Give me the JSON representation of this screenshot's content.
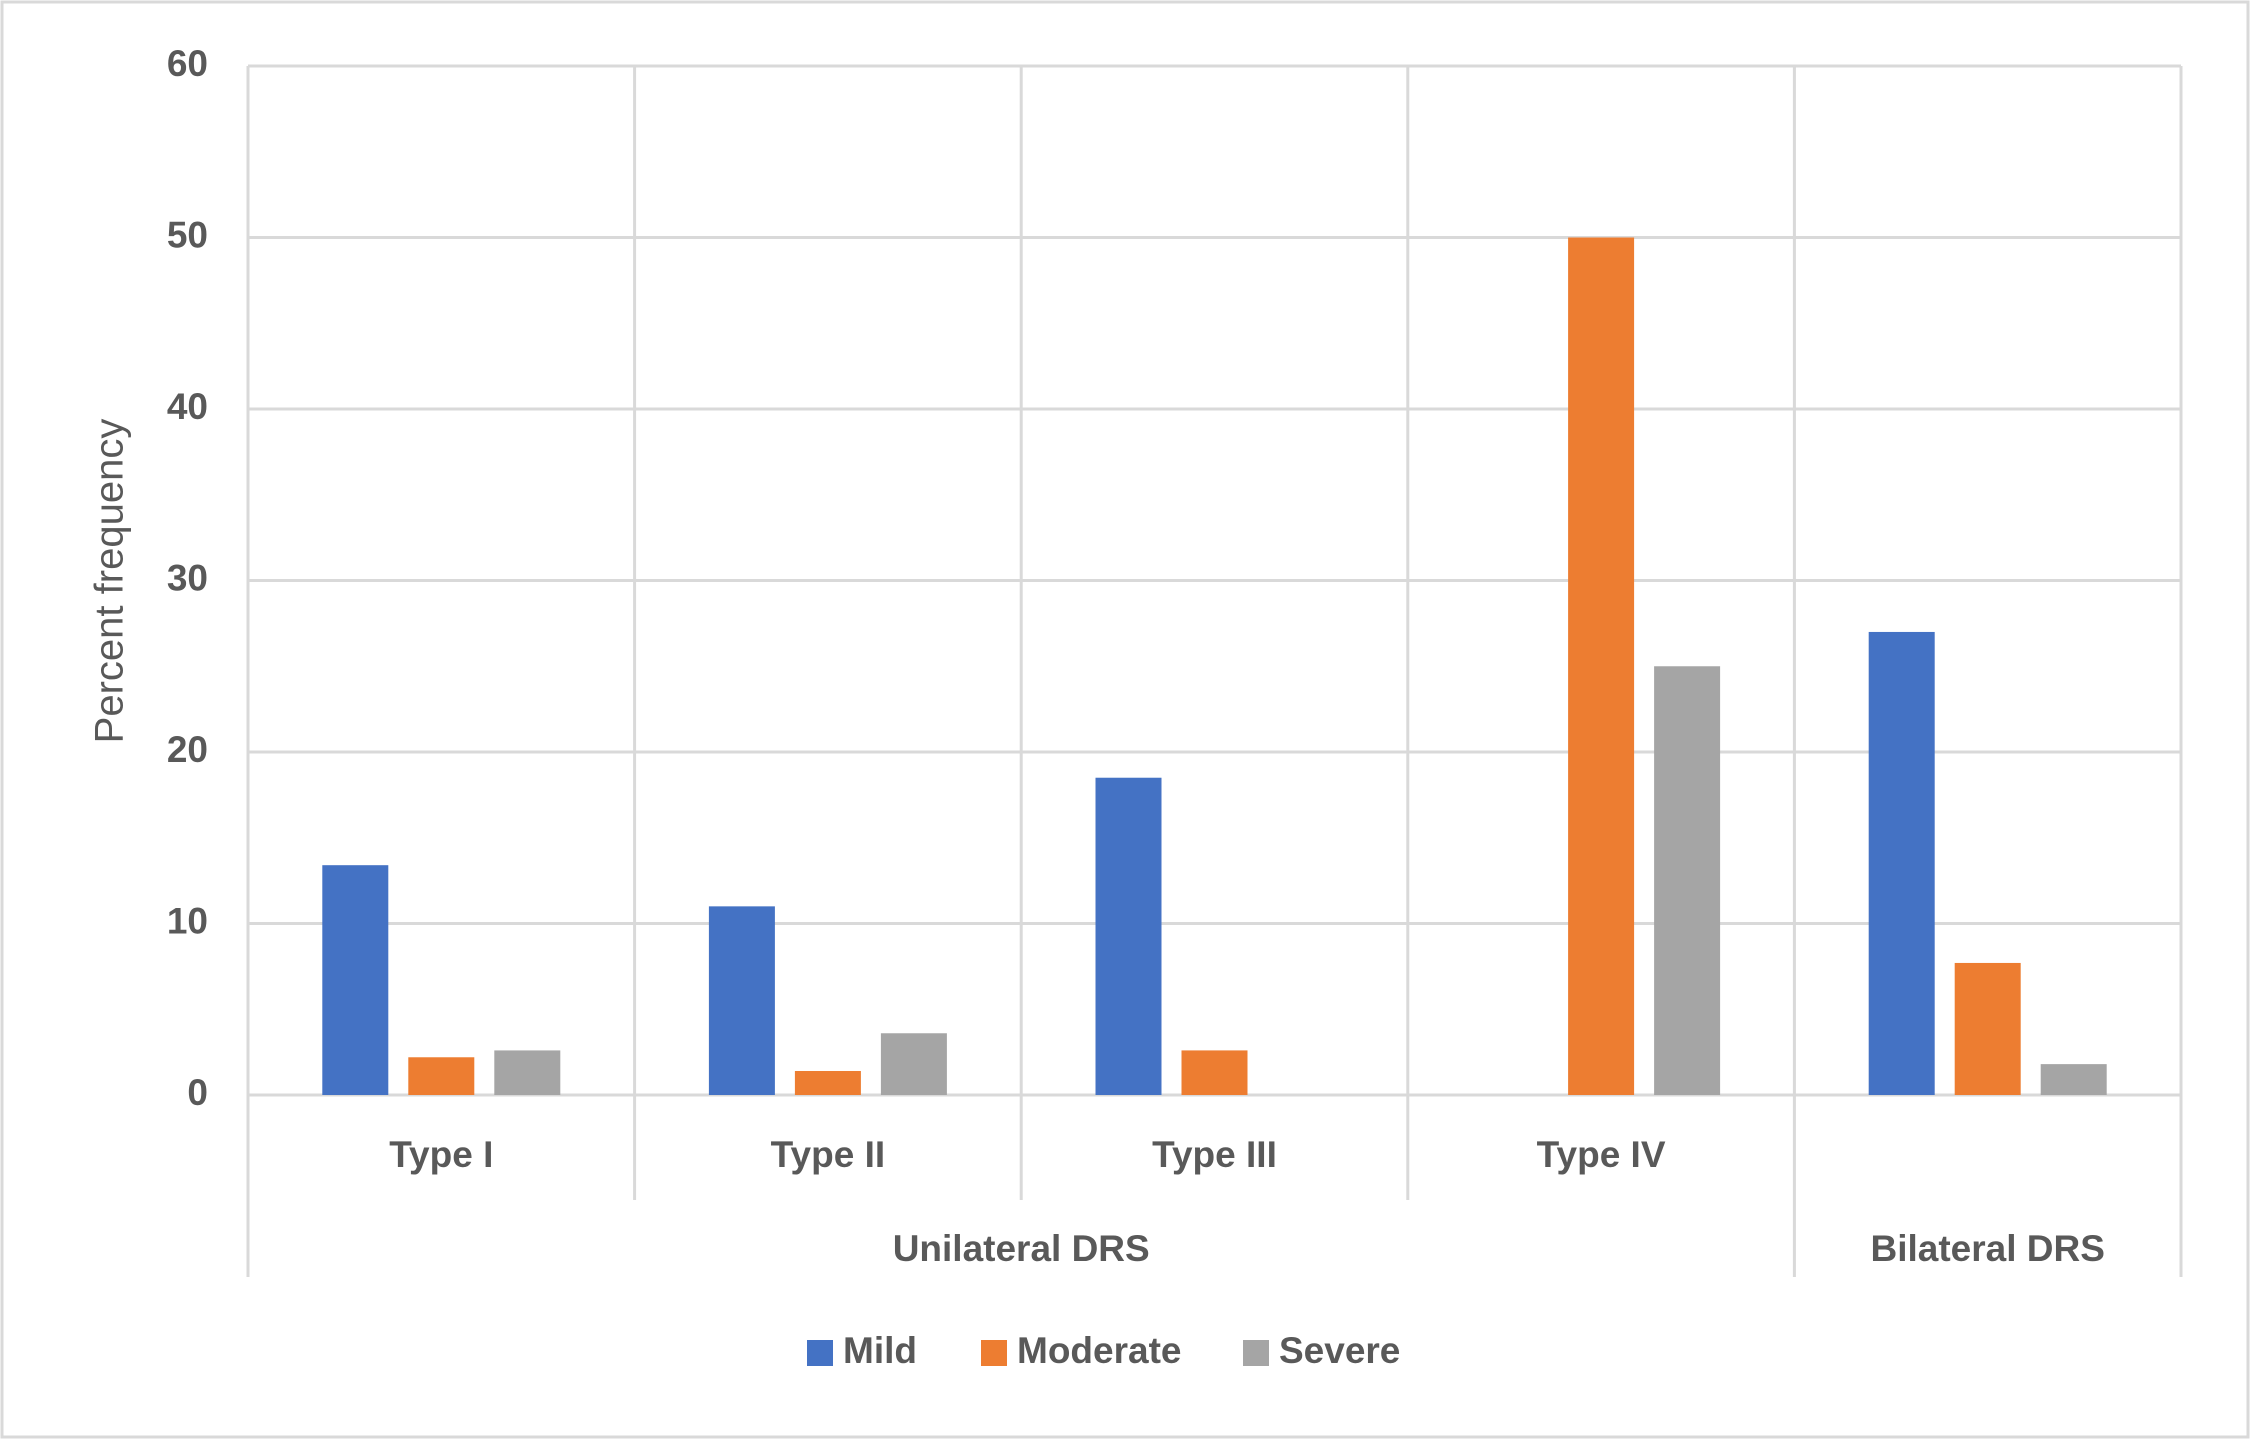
{
  "chart_data": {
    "type": "bar",
    "y_label": "Percent frequency",
    "categories": [
      "Type I",
      "Type II",
      "Type III",
      "Type IV",
      null
    ],
    "category_groups": [
      {
        "label": "Unilateral DRS",
        "count": 4
      },
      {
        "label": "Bilateral DRS",
        "count": 1
      }
    ],
    "series": [
      {
        "name": "Mild",
        "color": "#4472c4",
        "values": [
          13.4,
          11,
          18.5,
          0,
          27
        ]
      },
      {
        "name": "Moderate",
        "color": "#ed7d31",
        "values": [
          2.2,
          1.4,
          2.6,
          50,
          7.7
        ]
      },
      {
        "name": "Severe",
        "color": "#a5a5a5",
        "values": [
          2.6,
          3.6,
          0,
          25,
          1.8
        ]
      }
    ],
    "ylim": [
      0,
      60
    ],
    "yticks": [
      0,
      10,
      20,
      30,
      40,
      50,
      60
    ],
    "grid": true,
    "legend": "bottom"
  }
}
